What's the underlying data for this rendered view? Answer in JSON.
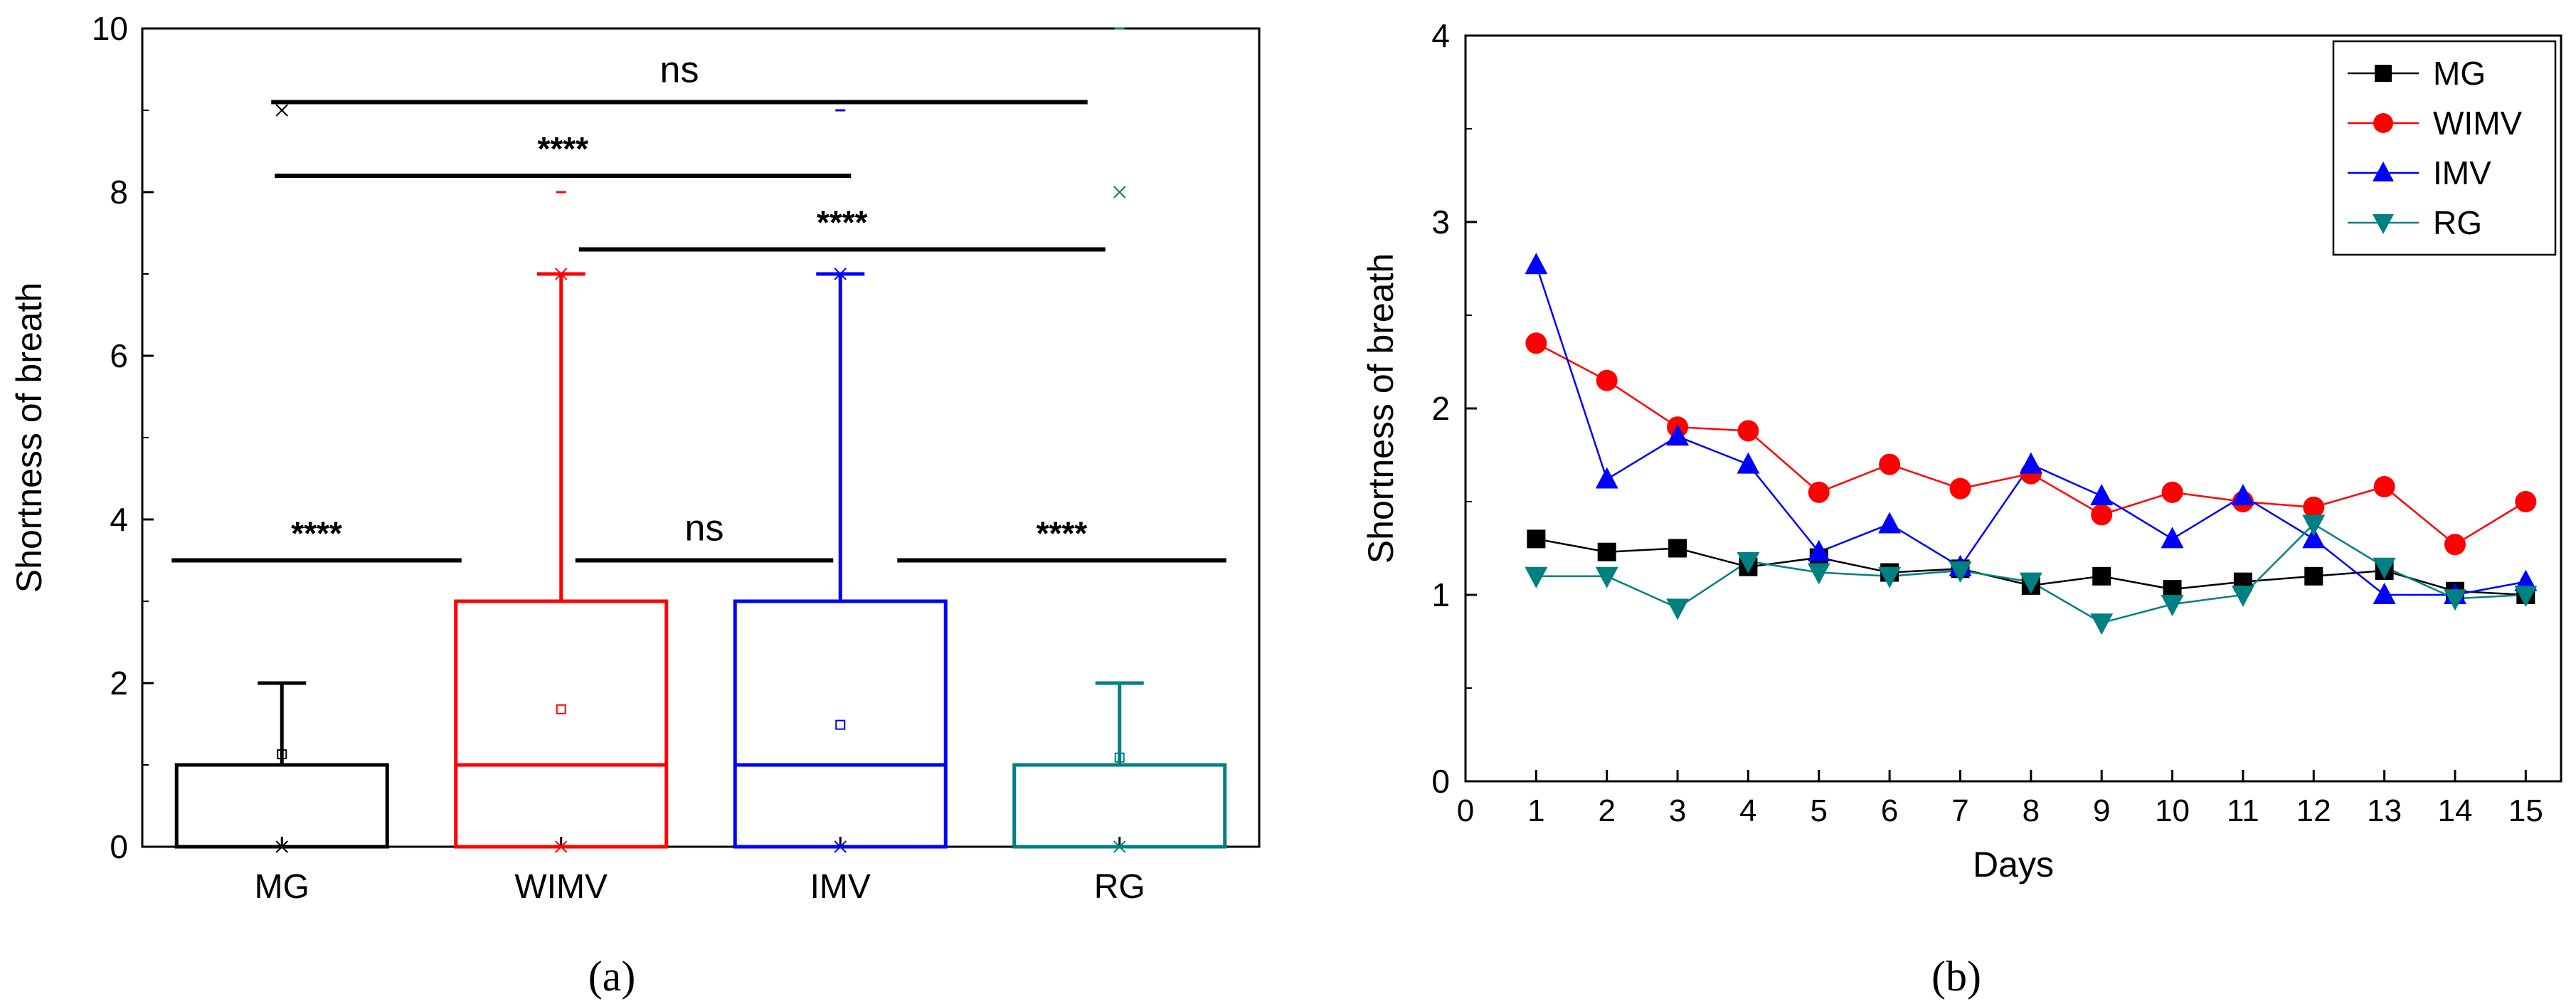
{
  "panel_labels": {
    "a": "(a)",
    "b": "(b)"
  },
  "chart_data": [
    {
      "type": "box",
      "panel": "(a)",
      "ylabel": "Shortness of breath",
      "xlabel": "",
      "ylim": [
        0,
        10
      ],
      "yticks": [
        0,
        2,
        4,
        6,
        8,
        10
      ],
      "grid": false,
      "categories": [
        "MG",
        "WIMV",
        "IMV",
        "RG"
      ],
      "colors": [
        "#000000",
        "#ff0000",
        "#0000ff",
        "#008080"
      ],
      "boxes": [
        {
          "name": "MG",
          "min": 0,
          "q1": 0,
          "median": 0,
          "q3": 1,
          "max": 2,
          "mean": 1.13,
          "pmin": 0,
          "pmax": 9
        },
        {
          "name": "WIMV",
          "min": 0,
          "q1": 0,
          "median": 1,
          "q3": 3,
          "max": 7,
          "mean": 1.68,
          "pmin": 0,
          "pmax": 7,
          "outliers": [
            8
          ]
        },
        {
          "name": "IMV",
          "min": 0,
          "q1": 0,
          "median": 1,
          "q3": 3,
          "max": 7,
          "mean": 1.49,
          "pmin": 0,
          "pmax": 7,
          "outliers": [
            9
          ]
        },
        {
          "name": "RG",
          "min": 0,
          "q1": 0,
          "median": 0,
          "q3": 1,
          "max": 2,
          "mean": 1.09,
          "pmin": 0,
          "pmax": 8,
          "outliers": [
            10
          ]
        }
      ],
      "significance": [
        {
          "from": "MG",
          "to": "RG",
          "y": 9.1,
          "label": "ns"
        },
        {
          "from": "MG",
          "to": "IMV",
          "y": 8.2,
          "label": "****"
        },
        {
          "from": "WIMV",
          "to": "RG",
          "y": 7.3,
          "label": "****"
        },
        {
          "from": "MG",
          "to": "WIMV",
          "y": 3.5,
          "label": "****"
        },
        {
          "from": "WIMV",
          "to": "IMV",
          "y": 3.5,
          "label": "ns"
        },
        {
          "from": "IMV",
          "to": "RG",
          "y": 3.5,
          "label": "****"
        }
      ]
    },
    {
      "type": "line",
      "panel": "(b)",
      "xlabel": "Days",
      "ylabel": "Shortness of breath",
      "xlim": [
        0,
        15.5
      ],
      "ylim": [
        0,
        4
      ],
      "xticks": [
        0,
        1,
        2,
        3,
        4,
        5,
        6,
        7,
        8,
        9,
        10,
        11,
        12,
        13,
        14,
        15
      ],
      "yticks": [
        0,
        1,
        2,
        3,
        4
      ],
      "grid": false,
      "legend_position": "top-right",
      "x": [
        1,
        2,
        3,
        4,
        5,
        6,
        7,
        8,
        9,
        10,
        11,
        12,
        13,
        14,
        15
      ],
      "series": [
        {
          "name": "MG",
          "color": "#000000",
          "marker": "square",
          "values": [
            1.3,
            1.23,
            1.25,
            1.15,
            1.2,
            1.12,
            1.14,
            1.05,
            1.1,
            1.03,
            1.07,
            1.1,
            1.13,
            1.02,
            1.0
          ]
        },
        {
          "name": "WIMV",
          "color": "#ff0000",
          "marker": "circle",
          "values": [
            2.35,
            2.15,
            1.9,
            1.88,
            1.55,
            1.7,
            1.57,
            1.65,
            1.43,
            1.55,
            1.5,
            1.47,
            1.58,
            1.27,
            1.5
          ]
        },
        {
          "name": "IMV",
          "color": "#0000ff",
          "marker": "triangle-up",
          "values": [
            2.77,
            1.62,
            1.85,
            1.7,
            1.23,
            1.38,
            1.15,
            1.7,
            1.53,
            1.3,
            1.53,
            1.3,
            1.0,
            1.0,
            1.07
          ]
        },
        {
          "name": "RG",
          "color": "#008080",
          "marker": "triangle-down",
          "values": [
            1.1,
            1.1,
            0.93,
            1.18,
            1.12,
            1.1,
            1.13,
            1.07,
            0.85,
            0.95,
            1.0,
            1.38,
            1.15,
            0.98,
            1.0
          ]
        }
      ]
    }
  ]
}
